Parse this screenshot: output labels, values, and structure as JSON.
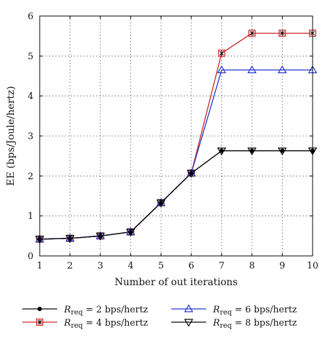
{
  "chart_data": {
    "type": "line",
    "title": "",
    "xlabel": "Number of out iterations",
    "ylabel": "EE (bps/Joule/hertz)",
    "x": [
      1,
      2,
      3,
      4,
      5,
      6,
      7,
      8,
      9,
      10
    ],
    "xlim": [
      1,
      10
    ],
    "ylim": [
      0,
      6
    ],
    "xticks": [
      1,
      2,
      3,
      4,
      5,
      6,
      7,
      8,
      9,
      10
    ],
    "yticks": [
      0,
      1,
      2,
      3,
      4,
      5,
      6
    ],
    "grid": true,
    "legend_position": "bottom",
    "series": [
      {
        "name": "R_req = 2 bps/hertz",
        "legend_sub": "req",
        "legend_rest": " = 2 bps/hertz",
        "color": "#000000",
        "marker": "dot",
        "values": [
          0.42,
          0.44,
          0.5,
          0.6,
          1.33,
          2.07,
          2.63,
          2.63,
          2.63,
          2.63
        ]
      },
      {
        "name": "R_req = 4 bps/hertz",
        "legend_sub": "req",
        "legend_rest": " = 4 bps/hertz",
        "color": "#cc2222",
        "marker": "square",
        "values": [
          0.42,
          0.44,
          0.5,
          0.6,
          1.33,
          2.07,
          5.07,
          5.57,
          5.57,
          5.57
        ]
      },
      {
        "name": "R_req = 6 bps/hertz",
        "legend_sub": "req",
        "legend_rest": " = 6 bps/hertz",
        "color": "#2233cc",
        "marker": "triangle-up",
        "values": [
          0.42,
          0.44,
          0.5,
          0.6,
          1.33,
          2.07,
          4.65,
          4.65,
          4.65,
          4.65
        ]
      },
      {
        "name": "R_req = 8 bps/hertz",
        "legend_sub": "req",
        "legend_rest": " = 8 bps/hertz",
        "color": "#000000",
        "marker": "triangle-down",
        "values": [
          0.42,
          0.44,
          0.5,
          0.6,
          1.33,
          2.07,
          2.63,
          2.63,
          2.63,
          2.63
        ]
      }
    ],
    "legend_prefix": "R"
  }
}
